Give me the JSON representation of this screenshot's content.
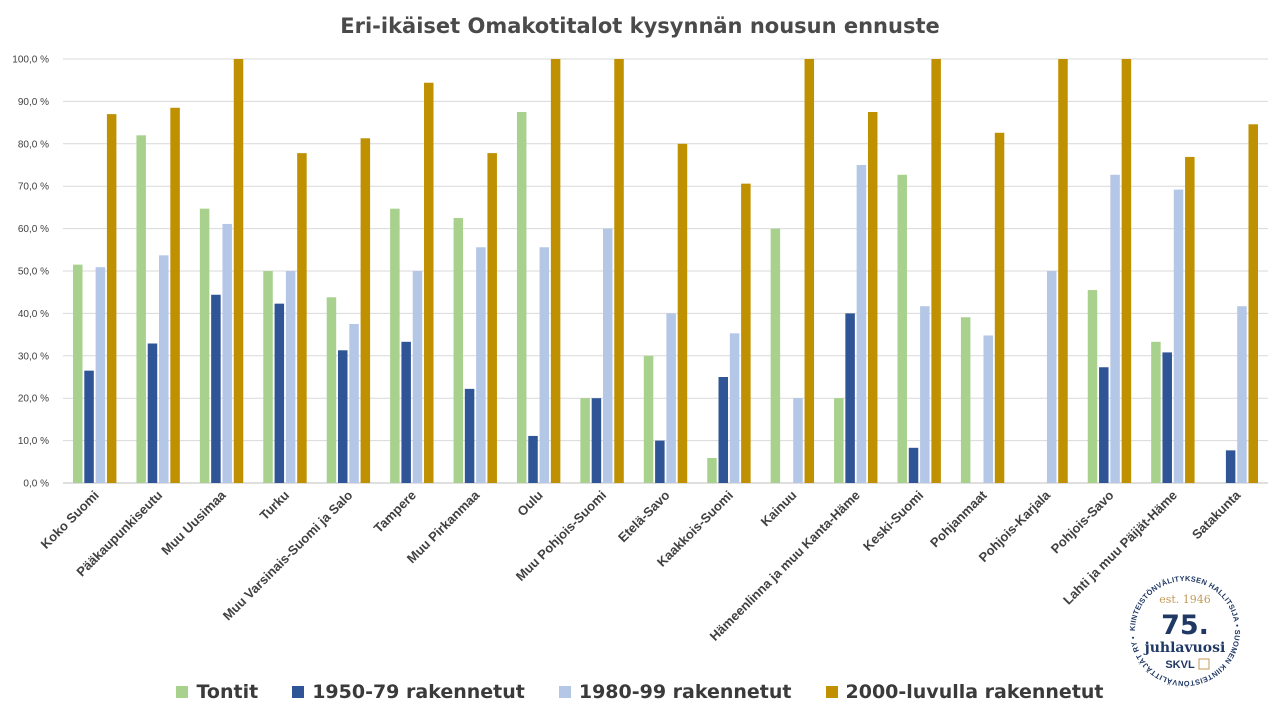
{
  "chart_data": {
    "type": "bar",
    "title": "Eri-ikäiset Omakotitalot kysynnän nousun ennuste",
    "xlabel": "",
    "ylabel": "",
    "ylim": [
      0,
      100
    ],
    "yticks": [
      "0,0 %",
      "10,0 %",
      "20,0 %",
      "30,0 %",
      "40,0 %",
      "50,0 %",
      "60,0 %",
      "70,0 %",
      "80,0 %",
      "90,0 %",
      "100,0 %"
    ],
    "grid": true,
    "legend_position": "bottom",
    "categories": [
      "Koko Suomi",
      "Pääkaupunkiseutu",
      "Muu Uusimaa",
      "Turku",
      "Muu Varsinais-Suomi ja Salo",
      "Tampere",
      "Muu Pirkanmaa",
      "Oulu",
      "Muu Pohjois-Suomi",
      "Etelä-Savo",
      "Kaakkois-Suomi",
      "Kainuu",
      "Hämeenlinna ja muu Kanta-Häme",
      "Keski-Suomi",
      "Pohjanmaat",
      "Pohjois-Karjala",
      "Pohjois-Savo",
      "Lahti ja muu Päijät-Häme",
      "Satakunta"
    ],
    "series": [
      {
        "name": "Tontit",
        "color": "#a9d18e",
        "values": [
          51.5,
          82,
          64.7,
          50,
          43.8,
          64.7,
          62.5,
          87.5,
          20,
          30,
          5.9,
          60,
          20,
          72.7,
          39.1,
          0,
          45.5,
          33.3,
          0
        ]
      },
      {
        "name": "1950-79 rakennetut",
        "color": "#2f5597",
        "values": [
          26.5,
          32.9,
          44.4,
          42.3,
          31.3,
          33.3,
          22.2,
          11.1,
          20,
          10,
          25,
          0,
          40,
          8.3,
          0,
          0,
          27.3,
          30.8,
          7.7
        ]
      },
      {
        "name": "1980-99 rakennetut",
        "color": "#b4c7e7",
        "values": [
          50.9,
          53.7,
          61.1,
          50,
          37.5,
          50,
          55.6,
          55.6,
          60,
          40,
          35.3,
          20,
          75,
          41.7,
          34.8,
          50,
          72.7,
          69.2,
          41.7
        ]
      },
      {
        "name": "2000-luvulla rakennetut",
        "color": "#bf9000",
        "values": [
          87,
          88.5,
          100,
          77.8,
          81.3,
          94.4,
          77.8,
          100,
          100,
          80,
          70.6,
          100,
          87.5,
          100,
          82.6,
          100,
          100,
          76.9,
          84.6
        ]
      }
    ]
  },
  "logo": {
    "ring_text": "KIINTEISTÖNVÄLITYKSEN HALLITSIJA • SUOMEN KIINTEISTÖNVÄLITTÄJÄT RY •",
    "est": "est. 1946",
    "number": "75.",
    "word": "juhlavuosi",
    "brand": "SKVL",
    "color": "#1f3864",
    "accent": "#c49a5a"
  }
}
